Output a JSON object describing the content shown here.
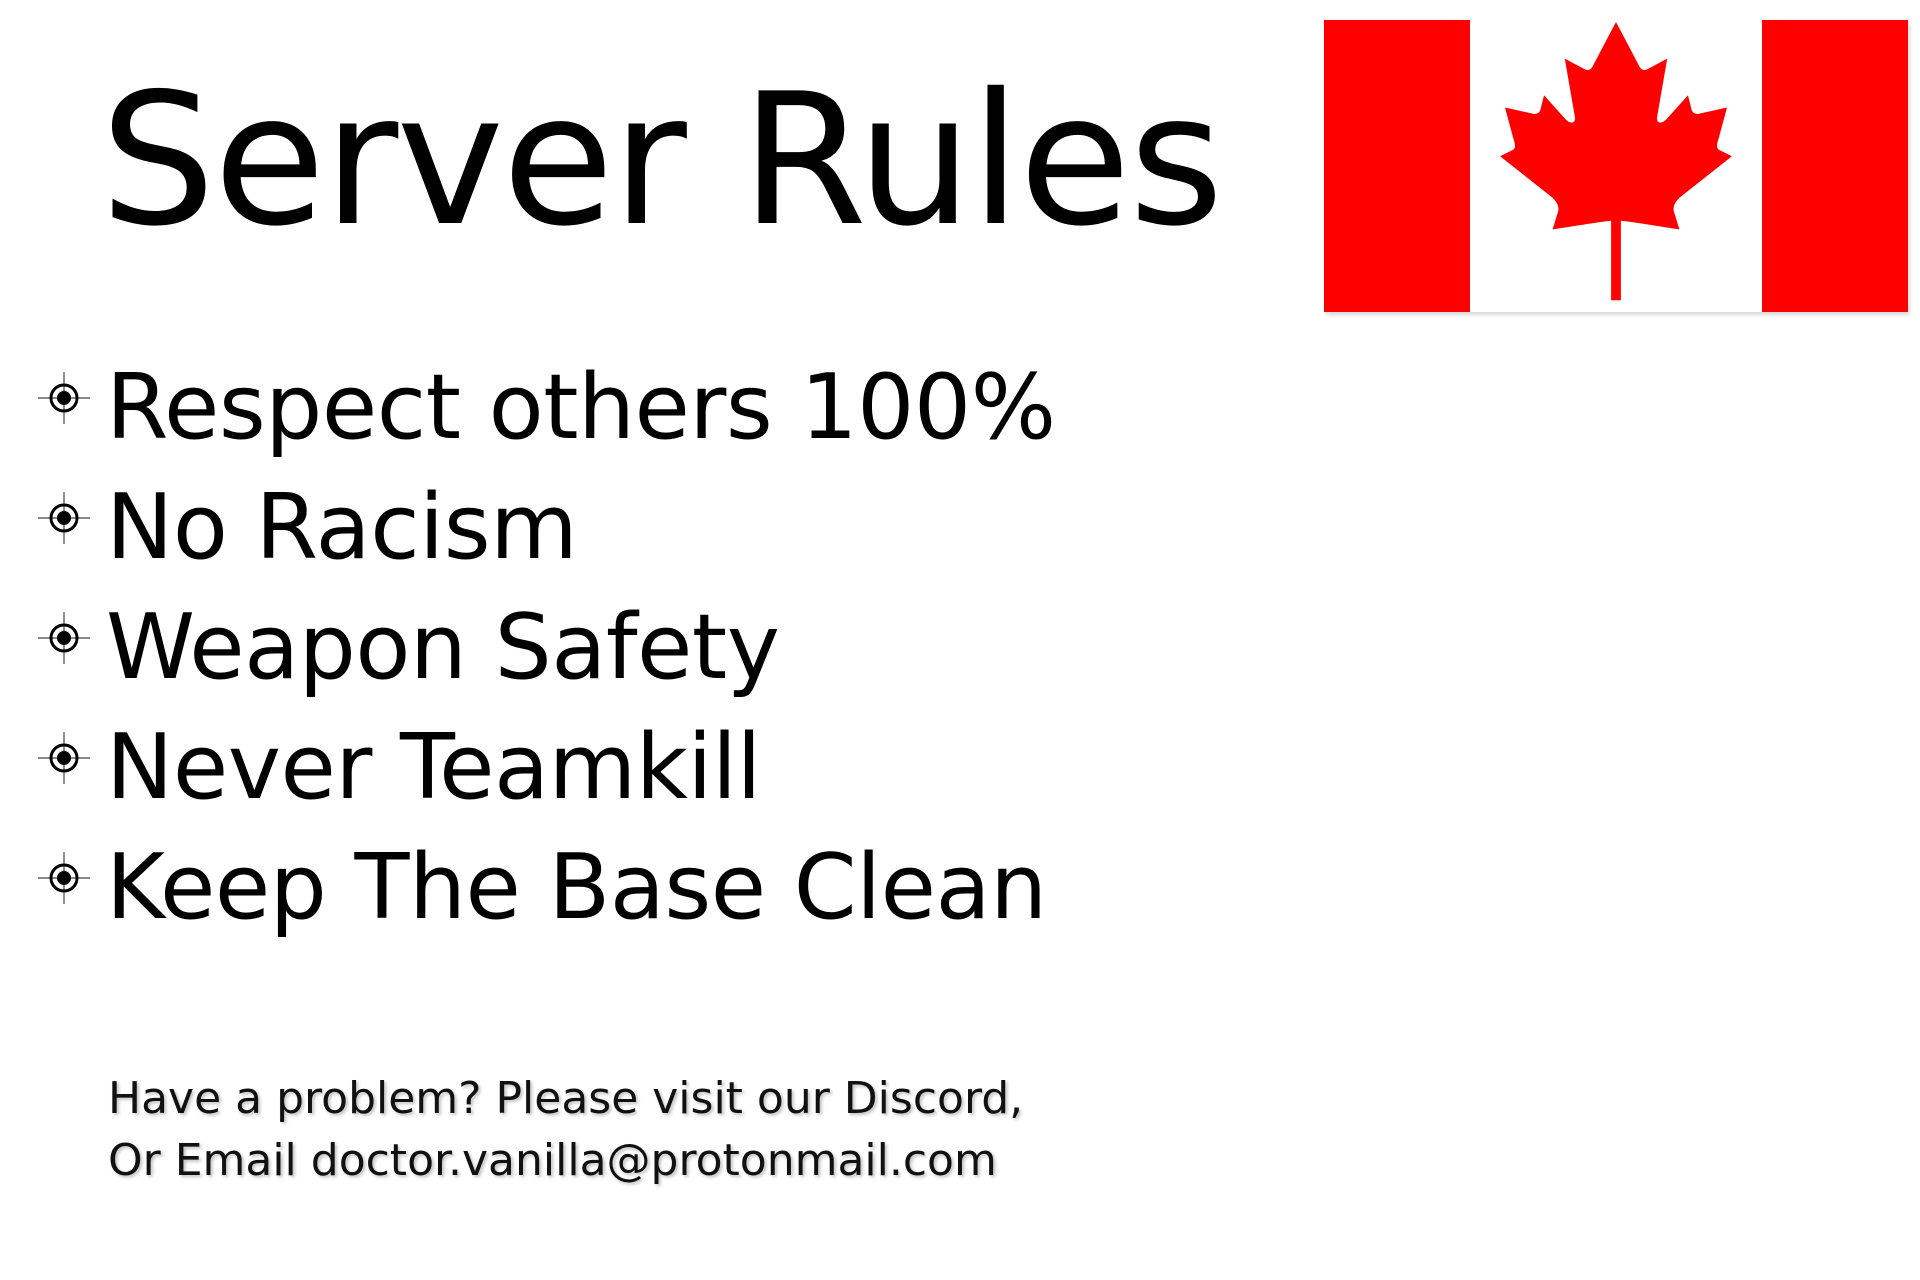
{
  "title": "Server Rules",
  "flag": {
    "icon": "canada-flag-icon",
    "colors": {
      "red": "#ff0000",
      "white": "#ffffff"
    }
  },
  "rules": [
    "Respect others 100%",
    "No Racism",
    "Weapon Safety",
    "Never Teamkill",
    "Keep The Base Clean"
  ],
  "bullet_icon": "crosshair-icon",
  "footer": {
    "line1": "Have a problem? Please visit our Discord,",
    "line2": "Or Email doctor.vanilla@protonmail.com"
  }
}
